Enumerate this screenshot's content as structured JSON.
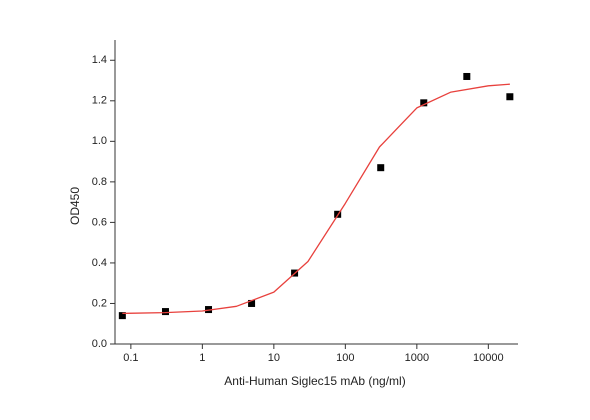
{
  "chart_data": {
    "type": "scatter",
    "x_label": "Anti-Human Siglec15 mAb (ng/ml)",
    "y_label": "OD450",
    "x_scale": "log",
    "xlim": [
      0.06,
      26000
    ],
    "ylim": [
      0,
      1.5
    ],
    "xticks": [
      0.1,
      1,
      10,
      100,
      1000,
      10000
    ],
    "yticks": [
      {
        "value": 0,
        "label": "0.0"
      },
      0.2,
      0.4,
      0.6,
      0.8,
      {
        "value": 1,
        "label": "1.0"
      },
      1.2,
      1.4
    ],
    "grid": false,
    "series": [
      {
        "mode": "markers",
        "marker": "square",
        "color": "#000000",
        "x": [
          0.076,
          0.305,
          1.22,
          4.88,
          19.5,
          78.1,
          312.5,
          1250,
          5000,
          20000
        ],
        "values": [
          0.14,
          0.16,
          0.17,
          0.2,
          0.35,
          0.64,
          0.87,
          1.19,
          1.32,
          1.22
        ]
      },
      {
        "mode": "line",
        "color": "#e8413d",
        "x": [
          0.076,
          0.3,
          1,
          3,
          10,
          30,
          100,
          300,
          1000,
          3000,
          10000,
          20000
        ],
        "values": [
          0.151,
          0.155,
          0.163,
          0.186,
          0.256,
          0.407,
          0.694,
          0.972,
          1.165,
          1.243,
          1.274,
          1.282
        ]
      }
    ]
  }
}
